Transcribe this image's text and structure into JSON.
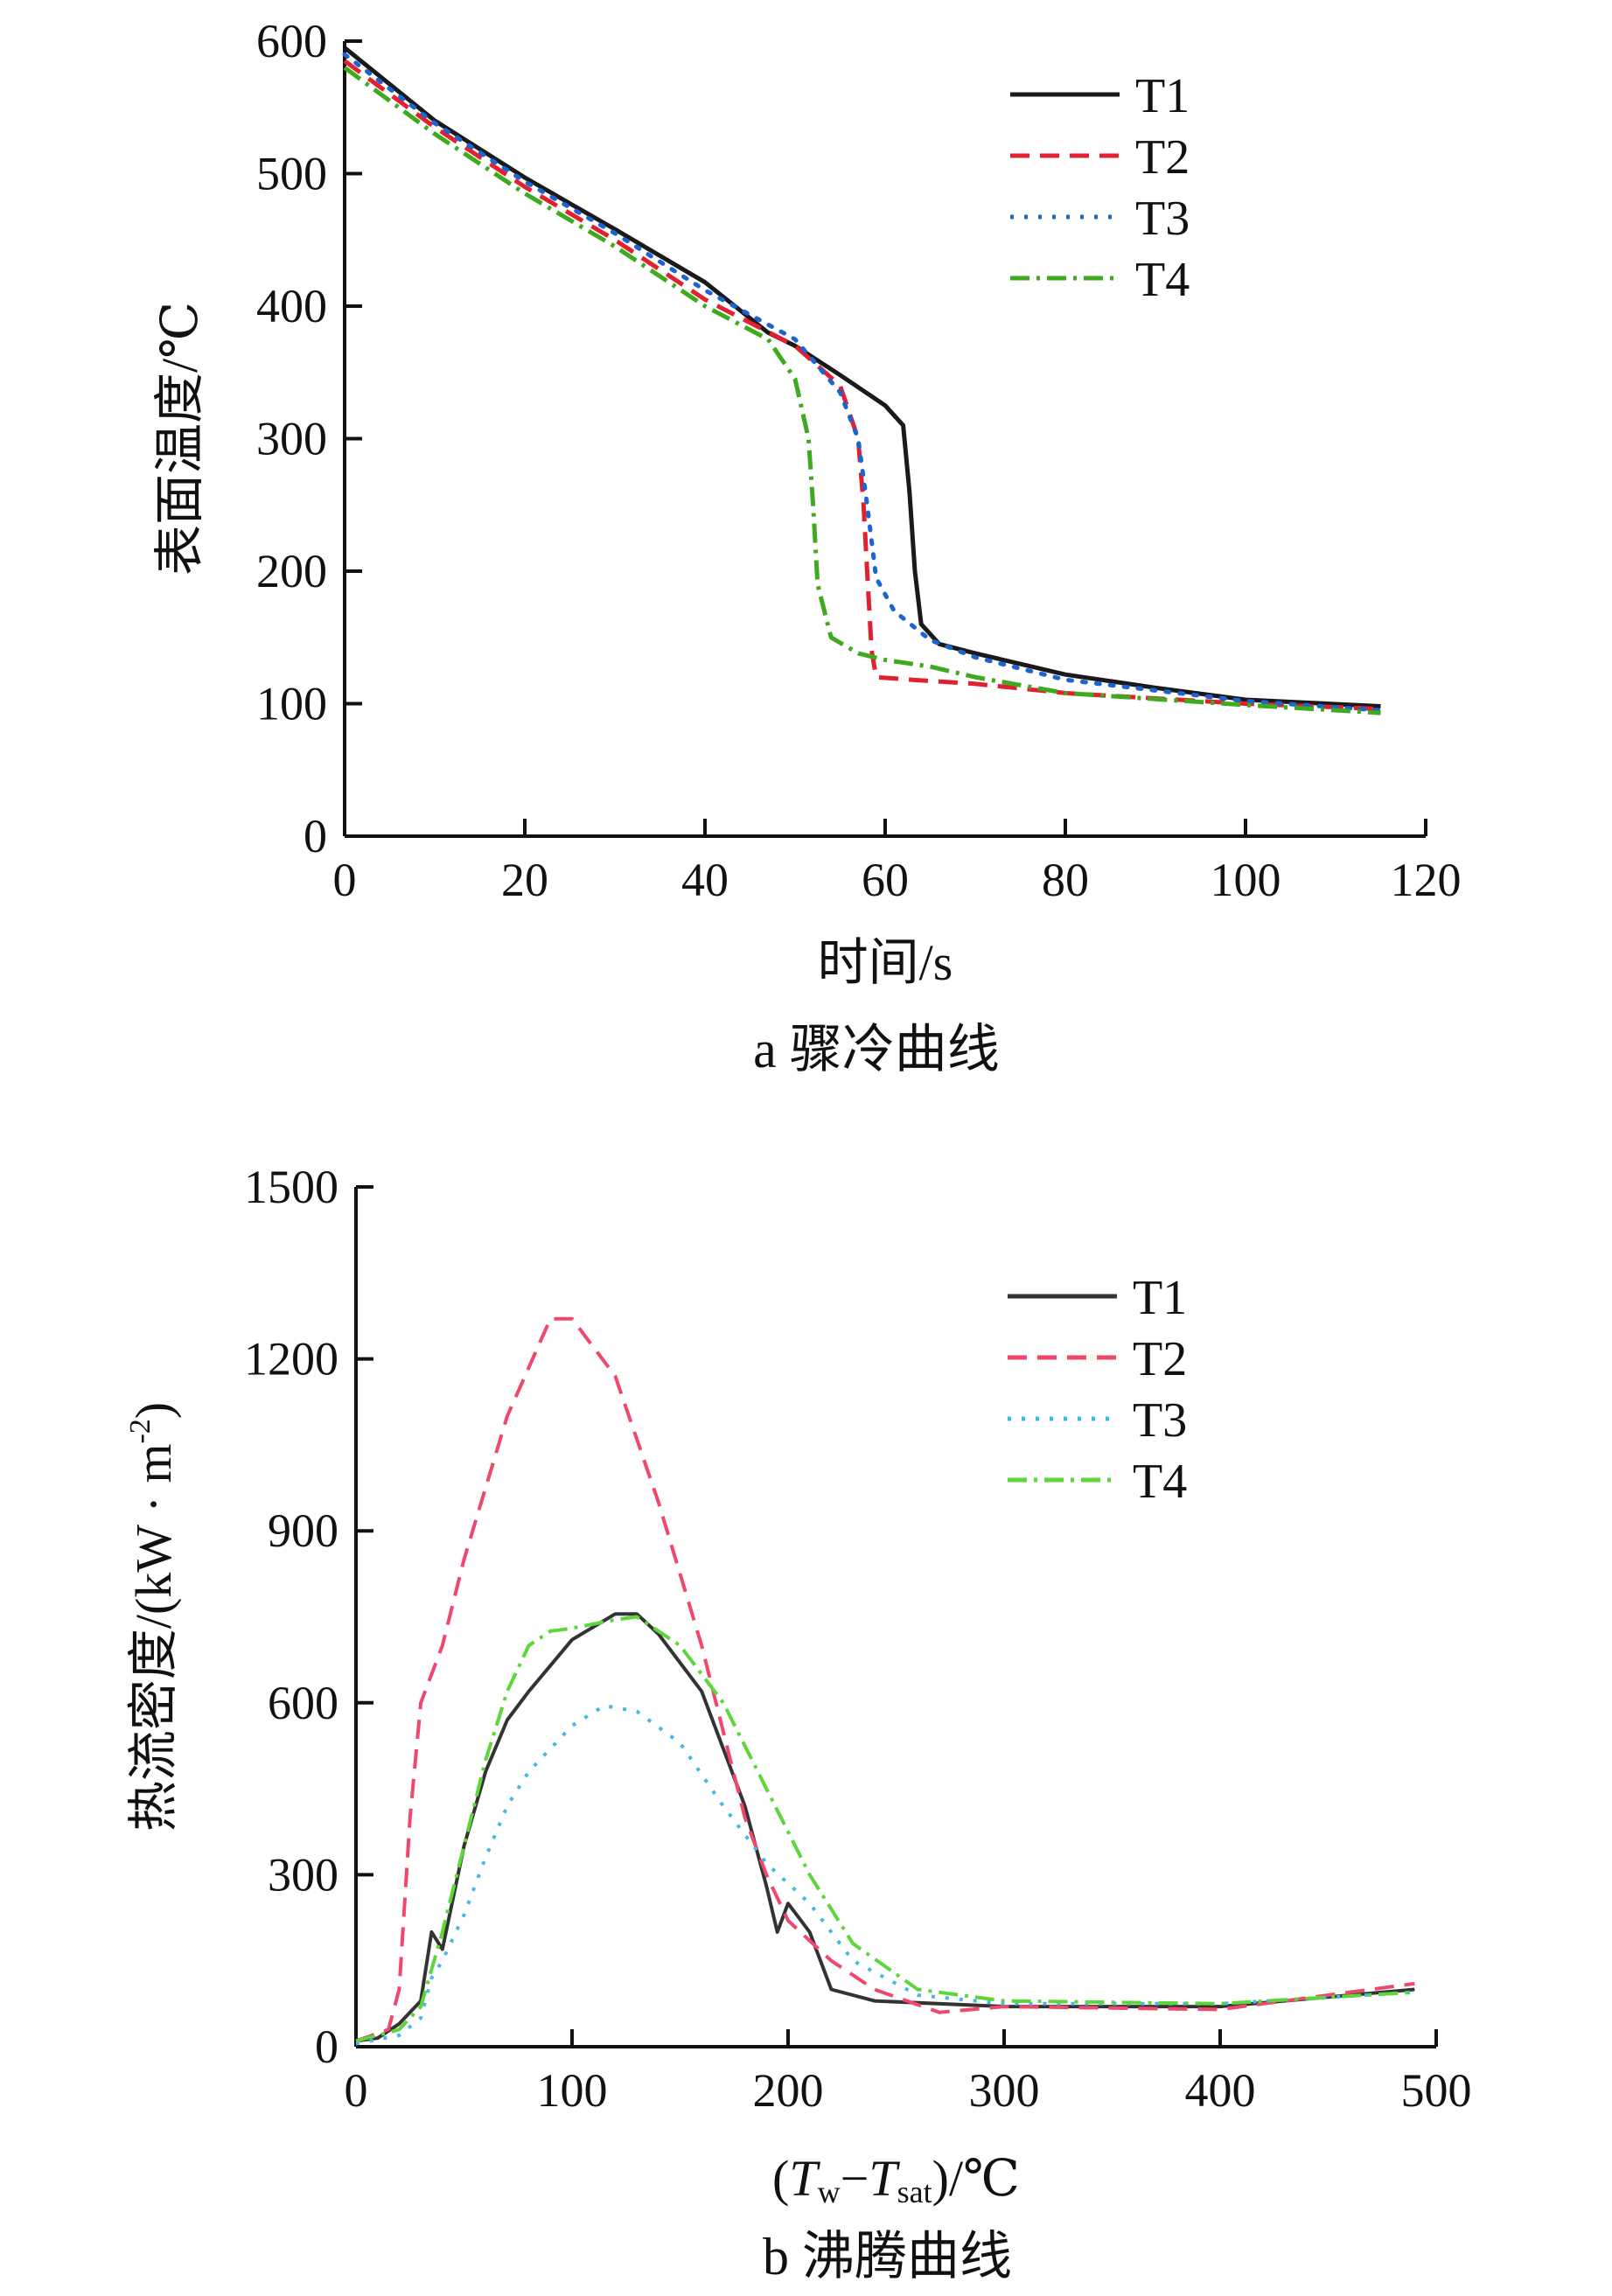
{
  "chart_data": [
    {
      "type": "line",
      "caption": "a  骤冷曲线",
      "xlabel": "时间/s",
      "ylabel": "表面温度/℃",
      "xlim": [
        0,
        120
      ],
      "ylim": [
        0,
        600
      ],
      "xticks": [
        0,
        20,
        40,
        60,
        80,
        100,
        120
      ],
      "yticks": [
        0,
        100,
        200,
        300,
        400,
        500,
        600
      ],
      "legend_position": "top-right",
      "grid": false,
      "series": [
        {
          "name": "T1",
          "color": "#1a1a1a",
          "dash": "solid",
          "x": [
            0,
            10,
            20,
            30,
            40,
            47,
            50,
            55,
            60,
            62,
            62.7,
            63.3,
            64,
            66,
            70,
            80,
            90,
            100,
            115
          ],
          "y": [
            595,
            540,
            497,
            458,
            418,
            380,
            370,
            348,
            325,
            310,
            260,
            200,
            160,
            145,
            138,
            122,
            112,
            103,
            98
          ]
        },
        {
          "name": "T2",
          "color": "#e3202f",
          "dash": "dashed",
          "x": [
            0,
            10,
            20,
            30,
            40,
            50,
            55,
            57,
            57.6,
            58,
            58.5,
            59,
            63,
            70,
            80,
            100,
            115
          ],
          "y": [
            585,
            535,
            490,
            450,
            405,
            370,
            340,
            300,
            250,
            200,
            140,
            120,
            118,
            115,
            108,
            100,
            96
          ]
        },
        {
          "name": "T3",
          "color": "#1c64d0",
          "dash": "dotted",
          "x": [
            0,
            10,
            20,
            30,
            40,
            50,
            55,
            57,
            58,
            59,
            61,
            65,
            70,
            80,
            100,
            115
          ],
          "y": [
            590,
            538,
            494,
            455,
            412,
            375,
            335,
            300,
            250,
            195,
            170,
            148,
            135,
            118,
            102,
            95
          ]
        },
        {
          "name": "T4",
          "color": "#3eaa1e",
          "dash": "dashdot",
          "x": [
            0,
            10,
            20,
            30,
            40,
            47,
            50,
            51.5,
            52,
            52.5,
            54,
            57,
            60,
            65,
            70,
            80,
            100,
            115
          ],
          "y": [
            580,
            530,
            485,
            445,
            400,
            375,
            345,
            300,
            250,
            190,
            150,
            138,
            133,
            128,
            120,
            108,
            99,
            93
          ]
        }
      ]
    },
    {
      "type": "line",
      "caption": "b  沸腾曲线",
      "xlabel_parts": [
        "(",
        "T",
        "w",
        "−",
        "T",
        "sat",
        ")/℃"
      ],
      "ylabel": "热流密度/(kW · m",
      "ylabel_sup": "-2",
      "ylabel_end": ")",
      "xlim": [
        0,
        500
      ],
      "ylim": [
        0,
        1500
      ],
      "xticks": [
        0,
        100,
        200,
        300,
        400,
        500
      ],
      "yticks": [
        0,
        300,
        600,
        900,
        1200,
        1500
      ],
      "legend_position": "top-right",
      "grid": false,
      "series": [
        {
          "name": "T1",
          "color": "#333333",
          "dash": "solid",
          "x": [
            0,
            10,
            20,
            30,
            35,
            40,
            50,
            60,
            70,
            80,
            100,
            120,
            130,
            140,
            160,
            180,
            190,
            195,
            200,
            210,
            220,
            240,
            300,
            400,
            490
          ],
          "y": [
            10,
            15,
            40,
            80,
            200,
            170,
            350,
            480,
            570,
            620,
            710,
            755,
            755,
            720,
            620,
            420,
            280,
            200,
            250,
            200,
            100,
            80,
            70,
            70,
            100
          ]
        },
        {
          "name": "T2",
          "color": "#f0486a",
          "dash": "dashed",
          "x": [
            0,
            15,
            20,
            25,
            30,
            40,
            50,
            70,
            90,
            100,
            120,
            140,
            160,
            180,
            190,
            200,
            220,
            240,
            270,
            300,
            400,
            490
          ],
          "y": [
            10,
            30,
            100,
            400,
            600,
            700,
            850,
            1100,
            1270,
            1270,
            1170,
            950,
            700,
            400,
            300,
            220,
            150,
            100,
            60,
            70,
            65,
            110
          ]
        },
        {
          "name": "T3",
          "color": "#45b8e6",
          "dash": "dotted",
          "x": [
            0,
            20,
            30,
            35,
            40,
            50,
            60,
            70,
            80,
            100,
            115,
            130,
            150,
            170,
            190,
            210,
            230,
            260,
            300,
            400,
            490
          ],
          "y": [
            5,
            20,
            50,
            120,
            150,
            230,
            330,
            420,
            480,
            560,
            595,
            585,
            530,
            420,
            320,
            250,
            150,
            90,
            75,
            75,
            95
          ]
        },
        {
          "name": "T4",
          "color": "#5cd63a",
          "dash": "dashdot",
          "x": [
            0,
            20,
            30,
            40,
            50,
            60,
            70,
            80,
            90,
            100,
            120,
            130,
            150,
            170,
            190,
            210,
            230,
            260,
            300,
            400,
            490
          ],
          "y": [
            10,
            30,
            70,
            200,
            350,
            500,
            620,
            700,
            725,
            730,
            745,
            750,
            700,
            600,
            450,
            300,
            180,
            100,
            80,
            75,
            95
          ]
        }
      ]
    }
  ]
}
